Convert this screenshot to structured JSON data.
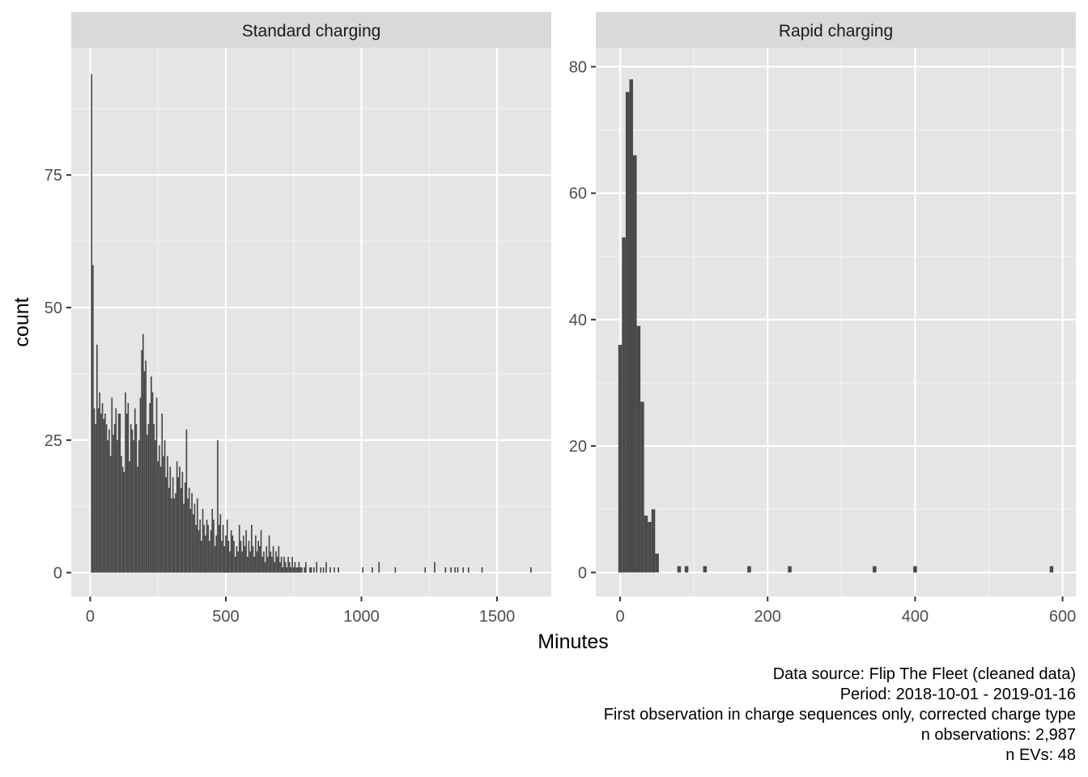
{
  "chart_data": {
    "type": "bar",
    "xlabel": "Minutes",
    "ylabel": "count",
    "colors": {
      "panel_bg": "#e5e5e5",
      "strip_bg": "#d9d9d9",
      "bar": "#4a4a4a",
      "grid": "#ffffff"
    },
    "caption": [
      "Data source: Flip The Fleet (cleaned data)",
      "Period: 2018-10-01 - 2019-01-16",
      "First observation in charge sequences only, corrected charge type",
      "n observations: 2,987",
      "n EVs: 48"
    ],
    "panels": [
      {
        "title": "Standard charging",
        "xlim": [
          -70,
          1700
        ],
        "ylim": [
          -4.5,
          99
        ],
        "x_ticks": [
          0,
          500,
          1000,
          1500
        ],
        "x_tick_labels": [
          "0",
          "500",
          "1000",
          "1500"
        ],
        "y_ticks": [
          0,
          25,
          50,
          75
        ],
        "y_tick_labels": [
          "0",
          "25",
          "50",
          "75"
        ],
        "bin_width": 5,
        "bins": [
          [
            5,
            94
          ],
          [
            10,
            58
          ],
          [
            15,
            31
          ],
          [
            20,
            28
          ],
          [
            25,
            43
          ],
          [
            30,
            31
          ],
          [
            35,
            34
          ],
          [
            40,
            30
          ],
          [
            45,
            32
          ],
          [
            50,
            29
          ],
          [
            55,
            30
          ],
          [
            60,
            28
          ],
          [
            65,
            25
          ],
          [
            70,
            27
          ],
          [
            75,
            22
          ],
          [
            80,
            33
          ],
          [
            85,
            26
          ],
          [
            90,
            28
          ],
          [
            95,
            31
          ],
          [
            100,
            25
          ],
          [
            105,
            30
          ],
          [
            110,
            30
          ],
          [
            115,
            22
          ],
          [
            120,
            20
          ],
          [
            125,
            19
          ],
          [
            130,
            34
          ],
          [
            135,
            30
          ],
          [
            140,
            32
          ],
          [
            145,
            21
          ],
          [
            150,
            28
          ],
          [
            155,
            27
          ],
          [
            160,
            25
          ],
          [
            165,
            31
          ],
          [
            170,
            28
          ],
          [
            175,
            20
          ],
          [
            180,
            25
          ],
          [
            185,
            33
          ],
          [
            190,
            42
          ],
          [
            195,
            45
          ],
          [
            200,
            38
          ],
          [
            205,
            40
          ],
          [
            210,
            26
          ],
          [
            215,
            28
          ],
          [
            220,
            32
          ],
          [
            225,
            37
          ],
          [
            230,
            34
          ],
          [
            235,
            28
          ],
          [
            240,
            25
          ],
          [
            245,
            33
          ],
          [
            250,
            21
          ],
          [
            255,
            24
          ],
          [
            260,
            20
          ],
          [
            265,
            30
          ],
          [
            270,
            22
          ],
          [
            275,
            25
          ],
          [
            280,
            18
          ],
          [
            285,
            22
          ],
          [
            290,
            16
          ],
          [
            295,
            20
          ],
          [
            300,
            14
          ],
          [
            305,
            18
          ],
          [
            310,
            14
          ],
          [
            315,
            15
          ],
          [
            320,
            21
          ],
          [
            325,
            18
          ],
          [
            330,
            20
          ],
          [
            335,
            16
          ],
          [
            340,
            19
          ],
          [
            345,
            13
          ],
          [
            350,
            17
          ],
          [
            355,
            27
          ],
          [
            360,
            14
          ],
          [
            365,
            16
          ],
          [
            370,
            12
          ],
          [
            375,
            15
          ],
          [
            380,
            11
          ],
          [
            385,
            13
          ],
          [
            390,
            9
          ],
          [
            395,
            14
          ],
          [
            400,
            8
          ],
          [
            405,
            10
          ],
          [
            410,
            6
          ],
          [
            415,
            12
          ],
          [
            420,
            9
          ],
          [
            425,
            7
          ],
          [
            430,
            10
          ],
          [
            435,
            9
          ],
          [
            440,
            6
          ],
          [
            445,
            8
          ],
          [
            450,
            12
          ],
          [
            455,
            10
          ],
          [
            460,
            5
          ],
          [
            465,
            7
          ],
          [
            470,
            25
          ],
          [
            475,
            9
          ],
          [
            480,
            11
          ],
          [
            485,
            6
          ],
          [
            490,
            9
          ],
          [
            495,
            5
          ],
          [
            500,
            7
          ],
          [
            505,
            10
          ],
          [
            510,
            6
          ],
          [
            515,
            4
          ],
          [
            520,
            8
          ],
          [
            525,
            7
          ],
          [
            530,
            6
          ],
          [
            535,
            3
          ],
          [
            540,
            5
          ],
          [
            545,
            4
          ],
          [
            550,
            9
          ],
          [
            555,
            6
          ],
          [
            560,
            4
          ],
          [
            565,
            7
          ],
          [
            570,
            5
          ],
          [
            575,
            8
          ],
          [
            580,
            3
          ],
          [
            585,
            6
          ],
          [
            590,
            4
          ],
          [
            595,
            9
          ],
          [
            600,
            5
          ],
          [
            605,
            3
          ],
          [
            610,
            7
          ],
          [
            615,
            4
          ],
          [
            620,
            6
          ],
          [
            625,
            5
          ],
          [
            630,
            8
          ],
          [
            635,
            3
          ],
          [
            640,
            4
          ],
          [
            645,
            2
          ],
          [
            650,
            5
          ],
          [
            655,
            3
          ],
          [
            660,
            7
          ],
          [
            665,
            4
          ],
          [
            670,
            3
          ],
          [
            675,
            5
          ],
          [
            680,
            2
          ],
          [
            685,
            4
          ],
          [
            690,
            3
          ],
          [
            695,
            5
          ],
          [
            700,
            2
          ],
          [
            705,
            3
          ],
          [
            710,
            1
          ],
          [
            715,
            3
          ],
          [
            720,
            2
          ],
          [
            725,
            1
          ],
          [
            730,
            3
          ],
          [
            735,
            2
          ],
          [
            740,
            1
          ],
          [
            745,
            3
          ],
          [
            750,
            1
          ],
          [
            755,
            2
          ],
          [
            760,
            1
          ],
          [
            765,
            1
          ],
          [
            770,
            2
          ],
          [
            775,
            1
          ],
          [
            780,
            1
          ],
          [
            790,
            1
          ],
          [
            795,
            2
          ],
          [
            810,
            1
          ],
          [
            815,
            1
          ],
          [
            825,
            1
          ],
          [
            835,
            2
          ],
          [
            850,
            1
          ],
          [
            860,
            1
          ],
          [
            870,
            2
          ],
          [
            885,
            1
          ],
          [
            900,
            1
          ],
          [
            915,
            1
          ],
          [
            1005,
            1
          ],
          [
            1040,
            1
          ],
          [
            1065,
            2
          ],
          [
            1125,
            1
          ],
          [
            1235,
            1
          ],
          [
            1270,
            2
          ],
          [
            1310,
            1
          ],
          [
            1330,
            1
          ],
          [
            1345,
            1
          ],
          [
            1355,
            1
          ],
          [
            1375,
            1
          ],
          [
            1395,
            1
          ],
          [
            1445,
            1
          ],
          [
            1625,
            1
          ]
        ]
      },
      {
        "title": "Rapid charging",
        "xlim": [
          -33,
          618
        ],
        "ylim": [
          -3.8,
          83
        ],
        "x_ticks": [
          0,
          200,
          400,
          600
        ],
        "x_tick_labels": [
          "0",
          "200",
          "400",
          "600"
        ],
        "y_ticks": [
          0,
          20,
          40,
          60,
          80
        ],
        "y_tick_labels": [
          "0",
          "20",
          "40",
          "60",
          "80"
        ],
        "bin_width": 5,
        "bins": [
          [
            0,
            36
          ],
          [
            5,
            53
          ],
          [
            10,
            76
          ],
          [
            15,
            78
          ],
          [
            20,
            66
          ],
          [
            25,
            39
          ],
          [
            30,
            27
          ],
          [
            35,
            9
          ],
          [
            40,
            8
          ],
          [
            45,
            10
          ],
          [
            50,
            3
          ],
          [
            80,
            1
          ],
          [
            90,
            1
          ],
          [
            115,
            1
          ],
          [
            175,
            1
          ],
          [
            230,
            1
          ],
          [
            345,
            1
          ],
          [
            400,
            1
          ],
          [
            585,
            1
          ]
        ]
      }
    ]
  }
}
